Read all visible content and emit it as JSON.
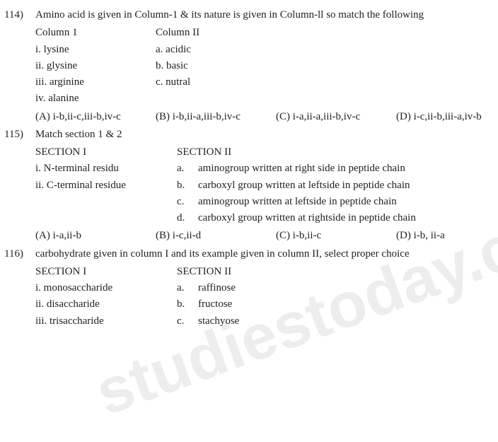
{
  "q114": {
    "num": "114)",
    "text": "Amino acid is given in Column-1 & its nature is given in Column-ll so match the following",
    "col1_head": "Column 1",
    "col2_head": "Column II",
    "rows": [
      {
        "c1": "i.   lysine",
        "c2": "a.  acidic"
      },
      {
        "c1": "ii.  glysine",
        "c2": "b.  basic"
      },
      {
        "c1": "iii. arginine",
        "c2": "c.  nutral"
      },
      {
        "c1": "iv. alanine",
        "c2": ""
      }
    ],
    "opts": [
      "(A) i-b,ii-c,iii-b,iv-c",
      "(B) i-b,ii-a,iii-b,iv-c",
      "(C) i-a,ii-a,iii-b,iv-c",
      "(D) i-c,ii-b,iii-a,iv-b"
    ]
  },
  "q115": {
    "num": "115)",
    "text": "Match section 1 & 2",
    "sec1_head": "SECTION I",
    "sec2_head": "SECTION II",
    "left": [
      "i.   N-terminal residu",
      "ii.  C-terminal residue"
    ],
    "right": [
      {
        "k": "a.",
        "t": "aminogroup written at right side in peptide chain"
      },
      {
        "k": "b.",
        "t": "carboxyl group written at leftside in peptide chain"
      },
      {
        "k": "c.",
        "t": "aminogroup written at leftside in peptide chain"
      },
      {
        "k": "d.",
        "t": "carboxyl group written at rightside in peptide chain"
      }
    ],
    "opts": [
      "(A) i-a,ii-b",
      "(B) i-c,ii-d",
      "(C) i-b,ii-c",
      "(D) i-b, ii-a"
    ]
  },
  "q116": {
    "num": "116)",
    "text": "carbohydrate given in column I and its example given in column II, select proper choice",
    "sec1_head": "SECTION I",
    "sec2_head": "SECTION II",
    "rows": [
      {
        "l": "i.   monosaccharide",
        "k": "a.",
        "r": "raffinose"
      },
      {
        "l": "ii.  disaccharide",
        "k": "b.",
        "r": "fructose"
      },
      {
        "l": "iii. trisaccharide",
        "k": "c.",
        "r": "stachyose"
      }
    ]
  }
}
